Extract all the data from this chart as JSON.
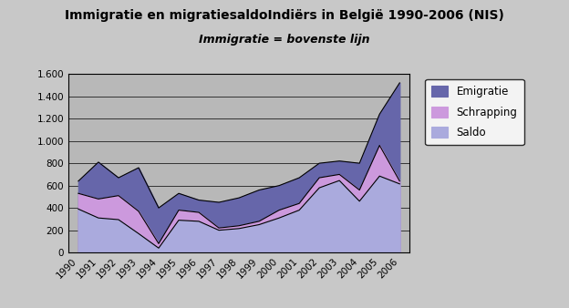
{
  "title": "Immigratie en migratiesaldoIndiërs in België 1990-2006 (NIS)",
  "subtitle": "Immigratie = bovenste lijn",
  "years": [
    1990,
    1991,
    1992,
    1993,
    1994,
    1995,
    1996,
    1997,
    1998,
    1999,
    2000,
    2001,
    2002,
    2003,
    2004,
    2005,
    2006
  ],
  "emigratie": [
    640,
    810,
    670,
    760,
    400,
    530,
    470,
    450,
    490,
    560,
    600,
    670,
    800,
    820,
    800,
    1240,
    1520
  ],
  "schrapping": [
    530,
    480,
    510,
    370,
    80,
    380,
    360,
    220,
    240,
    280,
    380,
    440,
    670,
    700,
    560,
    960,
    640
  ],
  "saldo": [
    390,
    310,
    295,
    170,
    40,
    290,
    280,
    200,
    215,
    250,
    310,
    380,
    580,
    645,
    460,
    685,
    615
  ],
  "color_emigratie": "#6666aa",
  "color_schrapping": "#cc99dd",
  "color_saldo": "#aaaadd",
  "bg_plot": "#b8b8b8",
  "bg_outer": "#c8c8c8",
  "ylim": [
    0,
    1600
  ],
  "yticks": [
    0,
    200,
    400,
    600,
    800,
    1000,
    1200,
    1400,
    1600
  ],
  "ytick_labels": [
    "0",
    "200",
    "400",
    "600",
    "800",
    "1.000",
    "1.200",
    "1.400",
    "1.600"
  ],
  "legend_labels": [
    "Emigratie",
    "Schrapping",
    "Saldo"
  ],
  "title_fontsize": 10,
  "subtitle_fontsize": 9
}
